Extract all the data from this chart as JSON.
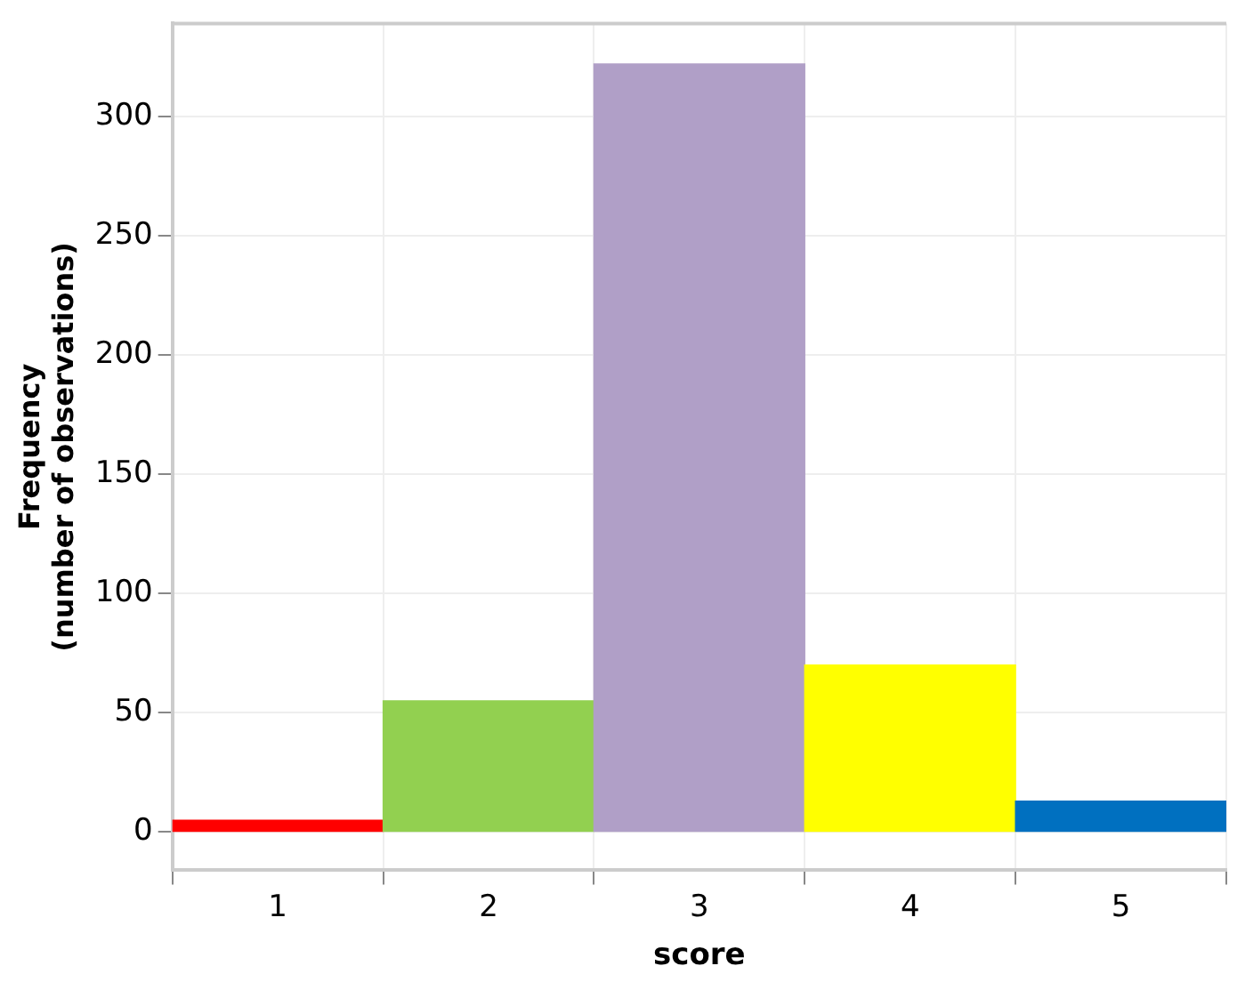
{
  "chart_data": {
    "type": "bar",
    "xlabel": "score",
    "ylabel": "Frequency\n(number of observations)",
    "categories": [
      "1",
      "2",
      "3",
      "4",
      "5"
    ],
    "values": [
      5,
      55,
      322,
      70,
      13
    ],
    "colors": [
      "#ff0000",
      "#92d050",
      "#b09fc7",
      "#ffff00",
      "#0070c0"
    ],
    "ylim": [
      -16,
      339
    ],
    "yticks": [
      0,
      50,
      100,
      150,
      200,
      250,
      300
    ],
    "grid": true
  }
}
